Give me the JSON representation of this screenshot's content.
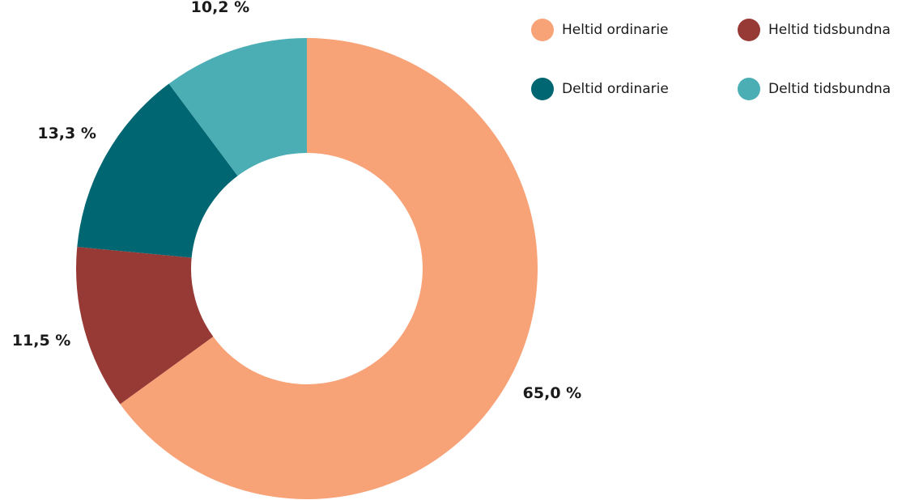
{
  "chart_data": {
    "type": "donut",
    "categories": [
      "Heltid ordinarie",
      "Heltid tidsbundna",
      "Deltid ordinarie",
      "Deltid tidsbundna"
    ],
    "values": [
      65.0,
      11.5,
      13.3,
      10.2
    ],
    "value_labels": [
      "65,0 %",
      "11,5 %",
      "13,3 %",
      "10,2 %"
    ],
    "colors": [
      "#f8a277",
      "#973a36",
      "#006672",
      "#4baeb5"
    ],
    "legend": "top-right"
  }
}
